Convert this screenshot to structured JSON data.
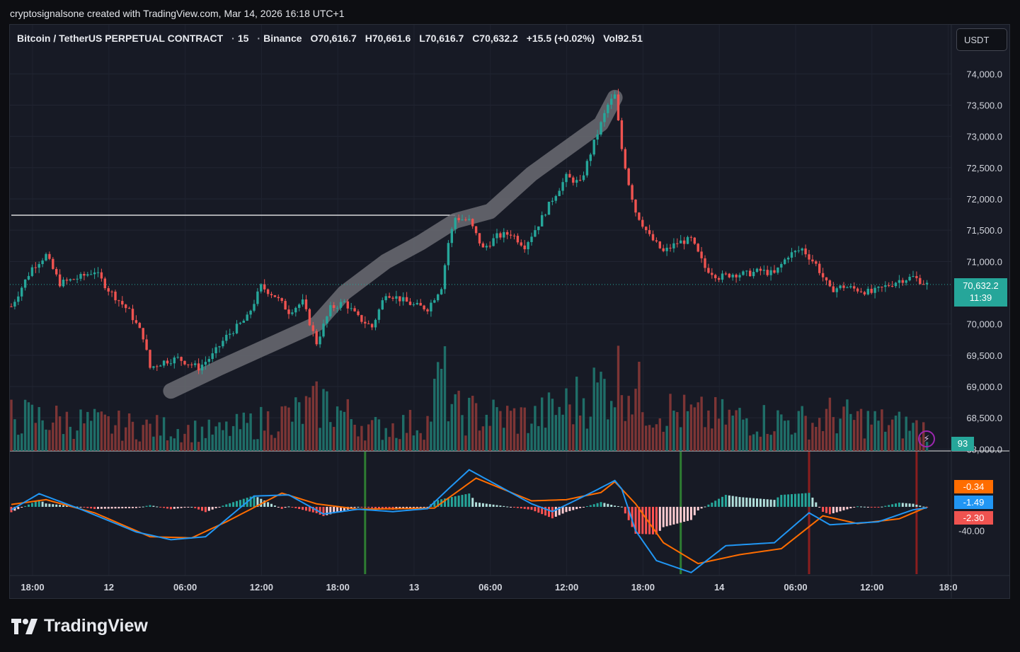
{
  "caption": "cryptosignalsone created with TradingView.com, Mar 14, 2026 16:18 UTC+1",
  "legend": {
    "symbol": "Bitcoin / TetherUS PERPETUAL CONTRACT",
    "interval": "15",
    "exchange": "Binance",
    "open": "O70,616.7",
    "high": "H70,661.6",
    "low": "L70,616.7",
    "close": "C70,632.2",
    "change": "+15.5 (+0.02%)",
    "volume": "Vol92.51"
  },
  "currency_button": "USDT",
  "price_axis": [
    "74,000.0",
    "73,500.0",
    "73,000.0",
    "72,500.0",
    "72,000.0",
    "71,500.0",
    "71,000.0",
    "70,000.0",
    "69,500.0",
    "69,000.0",
    "68,500.0",
    "68,000.0"
  ],
  "last_price": {
    "value": "70,632.2",
    "countdown": "11:39"
  },
  "volume_badge": "93",
  "macd_axis": "-40.00",
  "macd_badges": [
    {
      "value": "-0.34",
      "color": "#ff6d00"
    },
    {
      "value": "-1.49",
      "color": "#2196f3"
    },
    {
      "value": "-2.30",
      "color": "#ef5350"
    }
  ],
  "time_axis": [
    "18:00",
    "12",
    "06:00",
    "12:00",
    "18:00",
    "13",
    "06:00",
    "12:00",
    "18:00",
    "14",
    "06:00",
    "12:00",
    "18:0"
  ],
  "colors": {
    "up": "#26a69a",
    "down": "#ef5350",
    "macd": "#2196f3",
    "signal": "#ff6d00",
    "brush": "#6b6c73"
  },
  "chart_data": {
    "type": "candlestick",
    "symbol": "BTCUSDT.P",
    "interval": "15",
    "close_path": [
      [
        0,
        70280
      ],
      [
        6,
        70900
      ],
      [
        10,
        71100
      ],
      [
        14,
        70650
      ],
      [
        20,
        70750
      ],
      [
        24,
        70850
      ],
      [
        28,
        70550
      ],
      [
        34,
        70200
      ],
      [
        38,
        69800
      ],
      [
        40,
        69300
      ],
      [
        44,
        69400
      ],
      [
        48,
        69450
      ],
      [
        54,
        69300
      ],
      [
        58,
        69500
      ],
      [
        62,
        69800
      ],
      [
        68,
        70100
      ],
      [
        72,
        70600
      ],
      [
        76,
        70450
      ],
      [
        80,
        70200
      ],
      [
        84,
        70350
      ],
      [
        88,
        69700
      ],
      [
        92,
        70250
      ],
      [
        96,
        70350
      ],
      [
        100,
        70100
      ],
      [
        104,
        69950
      ],
      [
        108,
        70500
      ],
      [
        112,
        70400
      ],
      [
        116,
        70300
      ],
      [
        120,
        70250
      ],
      [
        124,
        70600
      ],
      [
        126,
        71300
      ],
      [
        128,
        71700
      ],
      [
        132,
        71650
      ],
      [
        136,
        71200
      ],
      [
        140,
        71400
      ],
      [
        144,
        71450
      ],
      [
        148,
        71250
      ],
      [
        152,
        71600
      ],
      [
        156,
        72000
      ],
      [
        160,
        72350
      ],
      [
        164,
        72250
      ],
      [
        168,
        72900
      ],
      [
        172,
        73500
      ],
      [
        174,
        73650
      ],
      [
        176,
        72800
      ],
      [
        178,
        72250
      ],
      [
        180,
        71800
      ],
      [
        184,
        71400
      ],
      [
        188,
        71150
      ],
      [
        192,
        71300
      ],
      [
        196,
        71350
      ],
      [
        200,
        70900
      ],
      [
        204,
        70750
      ],
      [
        208,
        70800
      ],
      [
        212,
        70800
      ],
      [
        216,
        70850
      ],
      [
        220,
        70800
      ],
      [
        224,
        71100
      ],
      [
        228,
        71200
      ],
      [
        232,
        70950
      ],
      [
        236,
        70550
      ],
      [
        240,
        70600
      ],
      [
        244,
        70550
      ],
      [
        248,
        70500
      ],
      [
        252,
        70600
      ],
      [
        256,
        70700
      ],
      [
        260,
        70750
      ],
      [
        264,
        70632
      ]
    ],
    "volume_path": [
      [
        0,
        55
      ],
      [
        30,
        40
      ],
      [
        60,
        30
      ],
      [
        84,
        60
      ],
      [
        90,
        75
      ],
      [
        104,
        35
      ],
      [
        120,
        45
      ],
      [
        124,
        120
      ],
      [
        128,
        60
      ],
      [
        150,
        50
      ],
      [
        160,
        70
      ],
      [
        172,
        105
      ],
      [
        176,
        120
      ],
      [
        180,
        95
      ],
      [
        184,
        70
      ],
      [
        196,
        55
      ],
      [
        232,
        45
      ],
      [
        236,
        55
      ],
      [
        264,
        35
      ]
    ],
    "macd_path": [
      [
        0,
        -5
      ],
      [
        8,
        22
      ],
      [
        20,
        -4
      ],
      [
        36,
        -42
      ],
      [
        46,
        -55
      ],
      [
        56,
        -50
      ],
      [
        70,
        18
      ],
      [
        80,
        20
      ],
      [
        90,
        -12
      ],
      [
        100,
        -4
      ],
      [
        110,
        -8
      ],
      [
        120,
        -3
      ],
      [
        126,
        30
      ],
      [
        132,
        62
      ],
      [
        150,
        5
      ],
      [
        156,
        -8
      ],
      [
        168,
        26
      ],
      [
        174,
        44
      ],
      [
        176,
        30
      ],
      [
        180,
        -40
      ],
      [
        186,
        -90
      ],
      [
        196,
        -110
      ],
      [
        206,
        -65
      ],
      [
        220,
        -60
      ],
      [
        230,
        -10
      ],
      [
        236,
        -30
      ],
      [
        250,
        -25
      ],
      [
        260,
        -5
      ],
      [
        264,
        -1.49
      ]
    ],
    "signal_path": [
      [
        0,
        4
      ],
      [
        10,
        12
      ],
      [
        24,
        -10
      ],
      [
        40,
        -50
      ],
      [
        52,
        -52
      ],
      [
        62,
        -25
      ],
      [
        78,
        23
      ],
      [
        88,
        5
      ],
      [
        100,
        -4
      ],
      [
        112,
        -3
      ],
      [
        122,
        -2
      ],
      [
        134,
        48
      ],
      [
        150,
        10
      ],
      [
        160,
        12
      ],
      [
        170,
        24
      ],
      [
        174,
        42
      ],
      [
        180,
        5
      ],
      [
        188,
        -60
      ],
      [
        198,
        -95
      ],
      [
        210,
        -80
      ],
      [
        222,
        -70
      ],
      [
        234,
        -15
      ],
      [
        244,
        -28
      ],
      [
        256,
        -20
      ],
      [
        264,
        -0.34
      ]
    ],
    "trend_lines": [
      {
        "type": "horizontal",
        "price": 71740,
        "from_bar": 0,
        "to_bar": 128,
        "color": "#ffffff"
      }
    ],
    "brush_path": [
      [
        46,
        68930
      ],
      [
        60,
        69300
      ],
      [
        72,
        69600
      ],
      [
        88,
        70000
      ],
      [
        96,
        70500
      ],
      [
        108,
        71000
      ],
      [
        118,
        71300
      ],
      [
        128,
        71650
      ],
      [
        138,
        71800
      ],
      [
        150,
        72400
      ],
      [
        160,
        72800
      ],
      [
        170,
        73200
      ],
      [
        174,
        73620
      ]
    ],
    "signal_markers": [
      {
        "bar": 102,
        "color": "#2e7d32"
      },
      {
        "bar": 193,
        "color": "#2e7d32"
      },
      {
        "bar": 230,
        "color": "#8b1e1e"
      },
      {
        "bar": 261,
        "color": "#8b1e1e"
      }
    ],
    "y_range": [
      67970,
      74400
    ],
    "macd_range": [
      -115,
      90
    ]
  }
}
